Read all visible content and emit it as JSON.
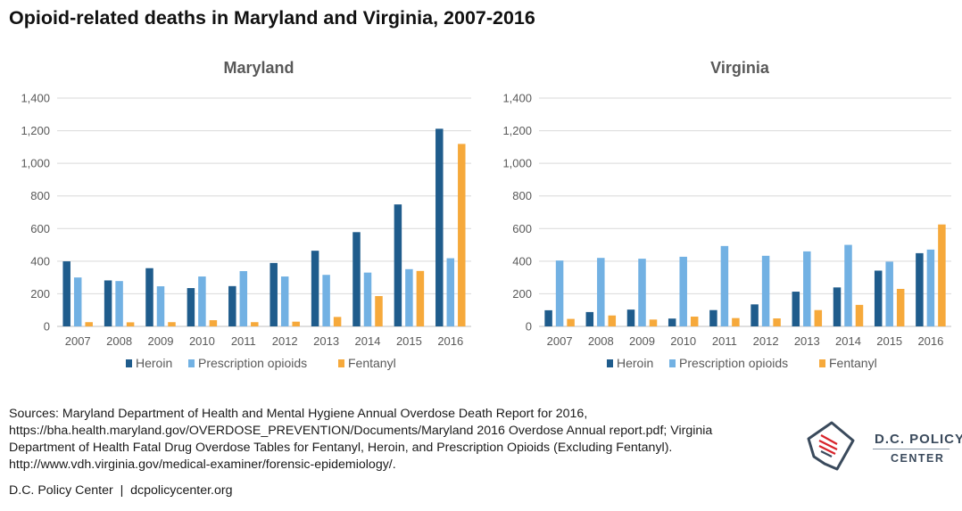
{
  "title": "Opioid-related deaths in Maryland and Virginia, 2007-2016",
  "sources": [
    "Sources: Maryland Department of Health and Mental Hygiene Annual Overdose Death Report for 2016,",
    "https://bha.health.maryland.gov/OVERDOSE_PREVENTION/Documents/Maryland 2016 Overdose Annual report.pdf; Virginia",
    "Department of Health Fatal Drug Overdose Tables for Fentanyl, Heroin, and Prescription Opioids (Excluding Fentanyl).",
    "http://www.vdh.virginia.gov/medical-examiner/forensic-epidemiology/."
  ],
  "footer": "D.C. Policy Center  |  dcpolicycenter.org",
  "logo": {
    "line1": "D.C. POLICY",
    "line2": "CENTER"
  },
  "colors": {
    "heroin": "#1f5c8c",
    "prescription": "#72b1e3",
    "fentanyl": "#f6a93b"
  },
  "chart_data": [
    {
      "type": "bar",
      "title": "Maryland",
      "categories": [
        "2007",
        "2008",
        "2009",
        "2010",
        "2011",
        "2012",
        "2013",
        "2014",
        "2015",
        "2016"
      ],
      "series": [
        {
          "name": "Heroin",
          "values": [
            399,
            282,
            357,
            235,
            247,
            389,
            464,
            578,
            748,
            1212
          ]
        },
        {
          "name": "Prescription opioids",
          "values": [
            300,
            278,
            246,
            306,
            339,
            306,
            316,
            330,
            351,
            418
          ]
        },
        {
          "name": "Fentanyl",
          "values": [
            26,
            25,
            26,
            38,
            26,
            29,
            58,
            186,
            340,
            1119
          ]
        }
      ],
      "ylim": [
        0,
        1400
      ],
      "yticks": [
        "0",
        "200",
        "400",
        "600",
        "800",
        "1,000",
        "1,200",
        "1,400"
      ],
      "legend_position": "bottom"
    },
    {
      "type": "bar",
      "title": "Virginia",
      "categories": [
        "2007",
        "2008",
        "2009",
        "2010",
        "2011",
        "2012",
        "2013",
        "2014",
        "2015",
        "2016"
      ],
      "series": [
        {
          "name": "Heroin",
          "values": [
            99,
            88,
            103,
            48,
            100,
            135,
            213,
            239,
            342,
            449
          ]
        },
        {
          "name": "Prescription opioids",
          "values": [
            404,
            420,
            415,
            427,
            493,
            433,
            460,
            500,
            397,
            471
          ]
        },
        {
          "name": "Fentanyl",
          "values": [
            46,
            67,
            42,
            60,
            51,
            49,
            100,
            132,
            230,
            625
          ]
        }
      ],
      "ylim": [
        0,
        1400
      ],
      "yticks": [
        "0",
        "200",
        "400",
        "600",
        "800",
        "1,000",
        "1,200",
        "1,400"
      ],
      "legend_position": "bottom"
    }
  ]
}
